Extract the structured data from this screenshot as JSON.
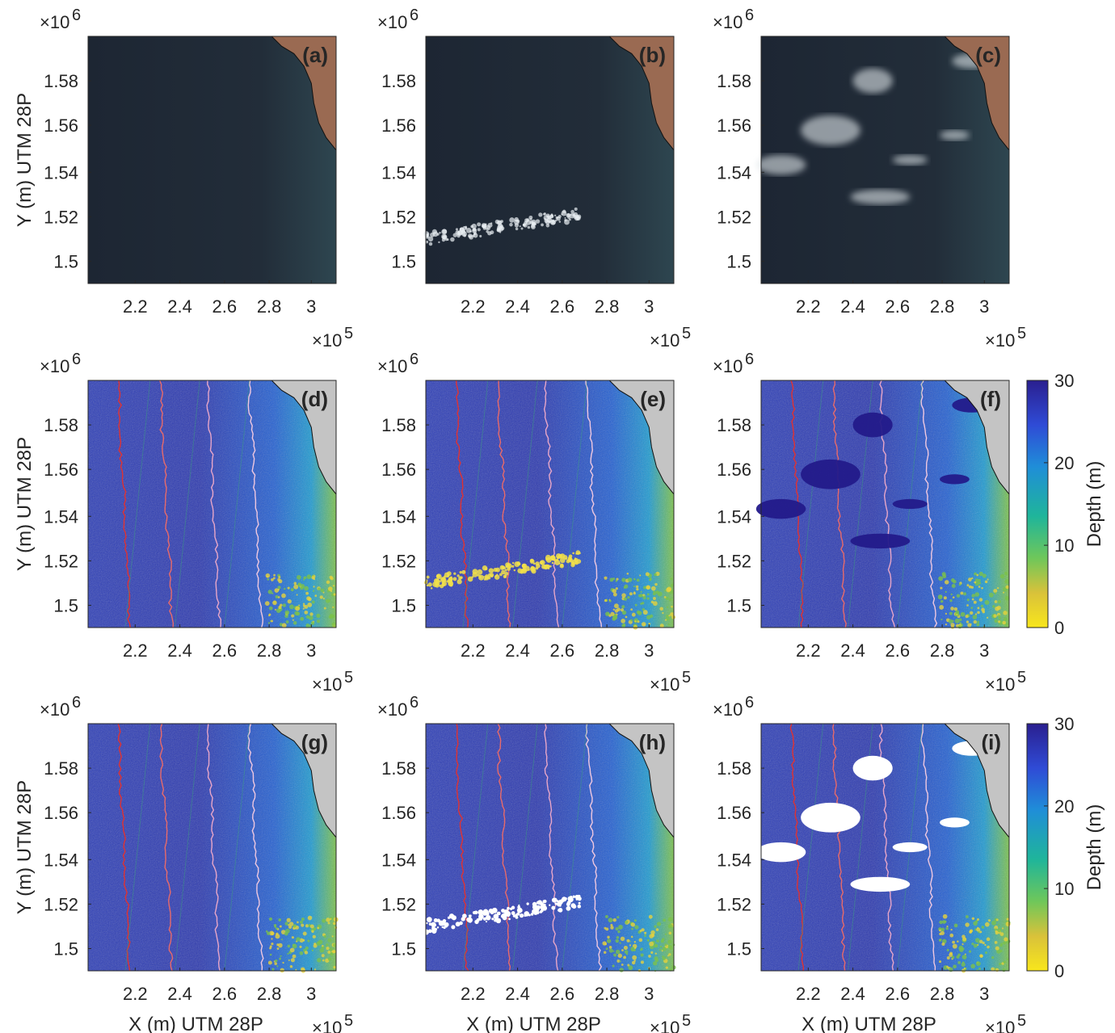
{
  "figure": {
    "x_ticks": [
      "2.2",
      "2.4",
      "2.6",
      "2.8",
      "3"
    ],
    "y_ticks": [
      "1.58",
      "1.56",
      "1.54",
      "1.52",
      "1.5"
    ],
    "x_multiplier": "×10",
    "x_multiplier_exp": "5",
    "y_multiplier": "×10",
    "y_multiplier_exp": "6",
    "y_label": "Y (m) UTM 28P",
    "x_label": "X (m) UTM 28P",
    "colorbar": {
      "label": "Depth (m)",
      "ticks": [
        "30",
        "20",
        "10",
        "0"
      ],
      "range": [
        0,
        30
      ],
      "colors": [
        "#2a1f8f",
        "#2f4bd6",
        "#1f8ed8",
        "#1fb59a",
        "#6fc75a",
        "#d9c23a",
        "#f8e61c"
      ]
    },
    "panels": [
      {
        "label": "(a)",
        "kind": "satellite",
        "clouds": "none"
      },
      {
        "label": "(b)",
        "kind": "satellite",
        "clouds": "streak"
      },
      {
        "label": "(c)",
        "kind": "satellite",
        "clouds": "patches"
      },
      {
        "label": "(d)",
        "kind": "depth",
        "clouds": "none"
      },
      {
        "label": "(e)",
        "kind": "depth",
        "clouds": "streak"
      },
      {
        "label": "(f)",
        "kind": "depth",
        "clouds": "patches"
      },
      {
        "label": "(g)",
        "kind": "depth-masked",
        "clouds": "none"
      },
      {
        "label": "(h)",
        "kind": "depth-masked",
        "clouds": "streak"
      },
      {
        "label": "(i)",
        "kind": "depth-masked",
        "clouds": "patches"
      }
    ]
  }
}
